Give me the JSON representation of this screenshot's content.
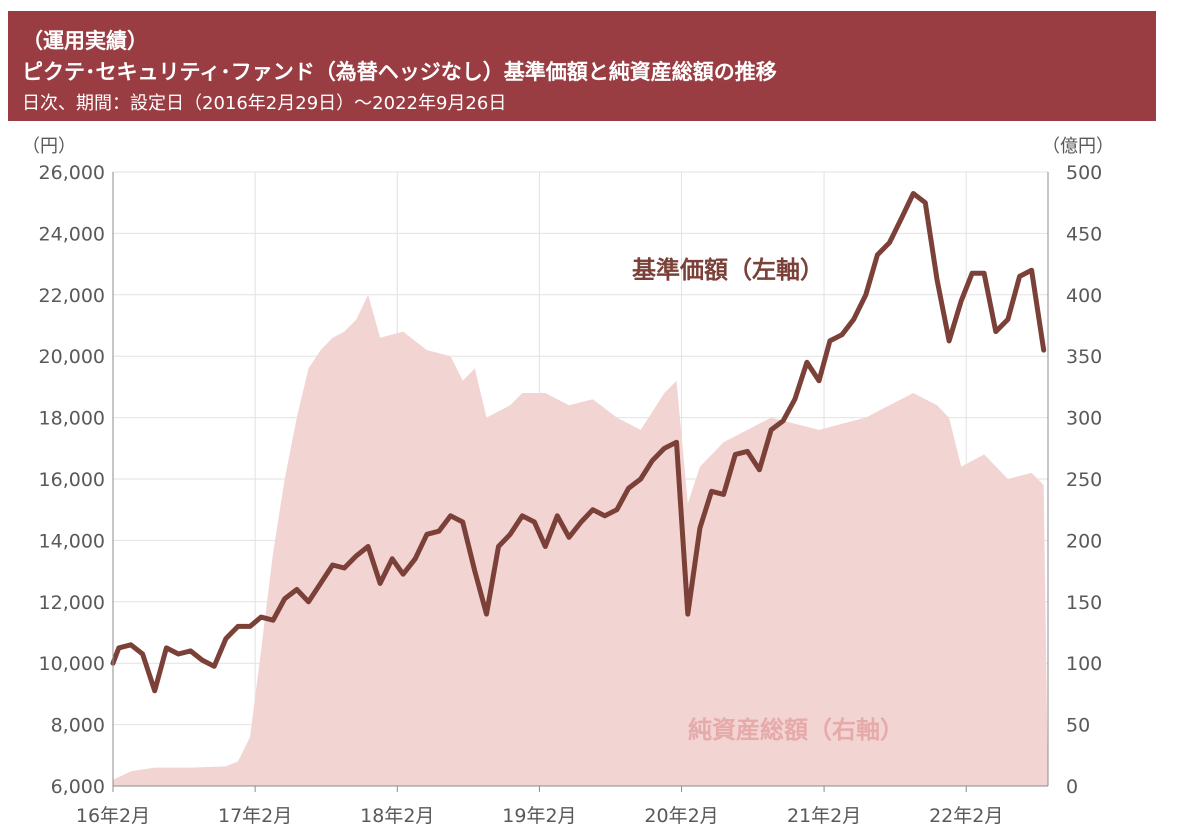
{
  "header": {
    "category": "（運用実績）",
    "title": "ピクテ･セキュリティ･ファンド（為替ヘッジなし）基準価額と純資産総額の推移",
    "subtitle": "日次、期間：設定日（2016年2月29日）～2022年9月26日"
  },
  "colors": {
    "header_bg": "#9a3d43",
    "nav_line": "#7b4138",
    "aum_fill": "#f2d4d2",
    "aum_label": "#e6aaaa",
    "nav_label": "#7b4138",
    "axis_text": "#595959",
    "grid": "#e2e2e2"
  },
  "chart_data": {
    "type": "line",
    "title": "ピクテ･セキュリティ･ファンド（為替ヘッジなし）基準価額と純資産総額の推移",
    "left_axis_unit": "（円）",
    "right_axis_unit": "（億円）",
    "ylim_left": [
      6000,
      26000
    ],
    "ylim_right": [
      0,
      500
    ],
    "y_ticks_left": [
      "6,000",
      "8,000",
      "10,000",
      "12,000",
      "14,000",
      "16,000",
      "18,000",
      "20,000",
      "22,000",
      "24,000",
      "26,000"
    ],
    "y_ticks_right": [
      "0",
      "50",
      "100",
      "150",
      "200",
      "250",
      "300",
      "350",
      "400",
      "450",
      "500"
    ],
    "x_ticks": [
      "16年2月",
      "17年2月",
      "18年2月",
      "19年2月",
      "20年2月",
      "21年2月",
      "22年2月"
    ],
    "x_range": [
      "2016-02-29",
      "2022-09-26"
    ],
    "grid": true,
    "series": [
      {
        "name": "基準価額（左軸）",
        "axis": "left",
        "kind": "line",
        "x": [
          "2016-02",
          "2016-03",
          "2016-04",
          "2016-05",
          "2016-06",
          "2016-07",
          "2016-08",
          "2016-09",
          "2016-10",
          "2016-11",
          "2016-12",
          "2017-01",
          "2017-02",
          "2017-03",
          "2017-04",
          "2017-05",
          "2017-06",
          "2017-07",
          "2017-08",
          "2017-09",
          "2017-10",
          "2017-11",
          "2017-12",
          "2018-01",
          "2018-02",
          "2018-03",
          "2018-04",
          "2018-05",
          "2018-06",
          "2018-07",
          "2018-08",
          "2018-09",
          "2018-10",
          "2018-11",
          "2018-12",
          "2019-01",
          "2019-02",
          "2019-03",
          "2019-04",
          "2019-05",
          "2019-06",
          "2019-07",
          "2019-08",
          "2019-09",
          "2019-10",
          "2019-11",
          "2019-12",
          "2020-01",
          "2020-02",
          "2020-03",
          "2020-04",
          "2020-05",
          "2020-06",
          "2020-07",
          "2020-08",
          "2020-09",
          "2020-10",
          "2020-11",
          "2020-12",
          "2021-01",
          "2021-02",
          "2021-03",
          "2021-04",
          "2021-05",
          "2021-06",
          "2021-07",
          "2021-08",
          "2021-09",
          "2021-10",
          "2021-11",
          "2021-12",
          "2022-01",
          "2022-02",
          "2022-03",
          "2022-04",
          "2022-05",
          "2022-06",
          "2022-07",
          "2022-08",
          "2022-09"
        ],
        "values": [
          10000,
          10500,
          10600,
          10300,
          9100,
          10500,
          10300,
          10400,
          10100,
          9900,
          10800,
          11200,
          11200,
          11500,
          11400,
          12100,
          12400,
          12000,
          12600,
          13200,
          13100,
          13500,
          13800,
          12600,
          13400,
          12900,
          13400,
          14200,
          14300,
          14800,
          14600,
          13000,
          11600,
          13800,
          14200,
          14800,
          14600,
          13800,
          14800,
          14100,
          14600,
          15000,
          14800,
          15000,
          15700,
          16000,
          16600,
          17000,
          17200,
          11600,
          14400,
          15600,
          15500,
          16800,
          16900,
          16300,
          17600,
          17900,
          18600,
          19800,
          19200,
          20500,
          20700,
          21200,
          22000,
          23300,
          23700,
          24500,
          25300,
          25000,
          22500,
          20500,
          21800,
          22700,
          22700,
          20800,
          21200,
          22600,
          22800,
          20200
        ]
      },
      {
        "name": "純資産総額（右軸）",
        "axis": "right",
        "kind": "area",
        "x": [
          "2016-02",
          "2016-04",
          "2016-06",
          "2016-09",
          "2016-12",
          "2017-01",
          "2017-02",
          "2017-03",
          "2017-04",
          "2017-05",
          "2017-06",
          "2017-07",
          "2017-08",
          "2017-09",
          "2017-10",
          "2017-11",
          "2017-12",
          "2018-01",
          "2018-03",
          "2018-05",
          "2018-07",
          "2018-08",
          "2018-09",
          "2018-10",
          "2018-12",
          "2019-01",
          "2019-03",
          "2019-05",
          "2019-07",
          "2019-09",
          "2019-11",
          "2020-01",
          "2020-02",
          "2020-03",
          "2020-04",
          "2020-06",
          "2020-08",
          "2020-10",
          "2020-12",
          "2021-02",
          "2021-04",
          "2021-06",
          "2021-08",
          "2021-10",
          "2021-12",
          "2022-01",
          "2022-02",
          "2022-04",
          "2022-06",
          "2022-08",
          "2022-09"
        ],
        "values": [
          5,
          12,
          15,
          15,
          16,
          20,
          40,
          110,
          190,
          250,
          300,
          340,
          355,
          365,
          370,
          380,
          400,
          365,
          370,
          355,
          350,
          330,
          340,
          300,
          310,
          320,
          320,
          310,
          315,
          300,
          290,
          320,
          330,
          230,
          260,
          280,
          290,
          300,
          295,
          290,
          295,
          300,
          310,
          320,
          310,
          300,
          260,
          270,
          250,
          255,
          245
        ]
      }
    ],
    "annotations": [
      "基準価額（左軸）",
      "純資産総額（右軸）"
    ]
  }
}
